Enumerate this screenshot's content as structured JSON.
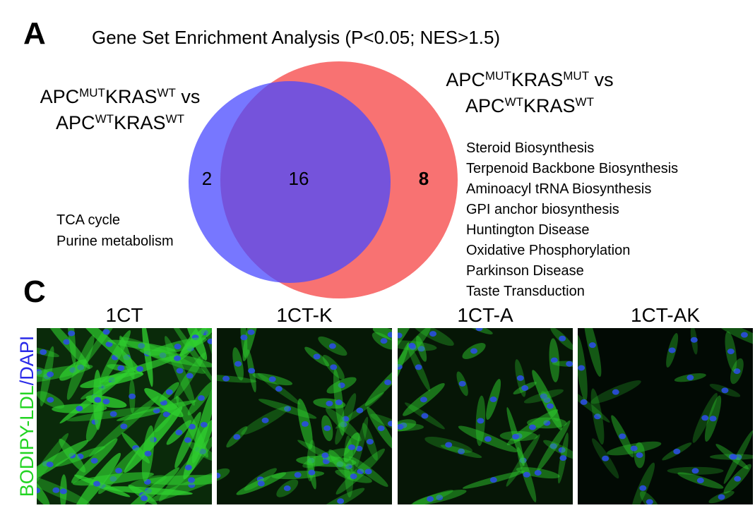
{
  "panel_a": {
    "letter": "A",
    "title": "Gene Set Enrichment Analysis (P<0.05; NES>1.5)",
    "left_set": {
      "lines": [
        [
          "APC",
          "MUT",
          "KRAS",
          "WT",
          " vs"
        ],
        [
          "APC",
          "WT",
          "KRAS",
          "WT"
        ]
      ]
    },
    "right_set": {
      "lines": [
        [
          "APC",
          "MUT",
          "KRAS",
          "MUT",
          " vs"
        ],
        [
          "APC",
          "WT",
          "KRAS",
          "WT"
        ]
      ]
    },
    "counts": {
      "left_only": "2",
      "both": "16",
      "right_only": "8"
    },
    "left_only_sets": [
      "TCA cycle",
      "Purine metabolism"
    ],
    "right_only_sets": [
      "Steroid Biosynthesis",
      "Terpenoid Backbone Biosynthesis",
      "Aminoacyl tRNA Biosynthesis",
      "GPI anchor biosynthesis",
      "Huntington Disease",
      "Oxidative Phosphorylation",
      "Parkinson Disease",
      "Taste Transduction"
    ]
  },
  "panel_c": {
    "letter": "C",
    "stain_label": [
      "BODIPY-LDL",
      "/DAPI"
    ],
    "images": [
      "1CT",
      "1CT-K",
      "1CT-A",
      "1CT-AK"
    ]
  }
}
